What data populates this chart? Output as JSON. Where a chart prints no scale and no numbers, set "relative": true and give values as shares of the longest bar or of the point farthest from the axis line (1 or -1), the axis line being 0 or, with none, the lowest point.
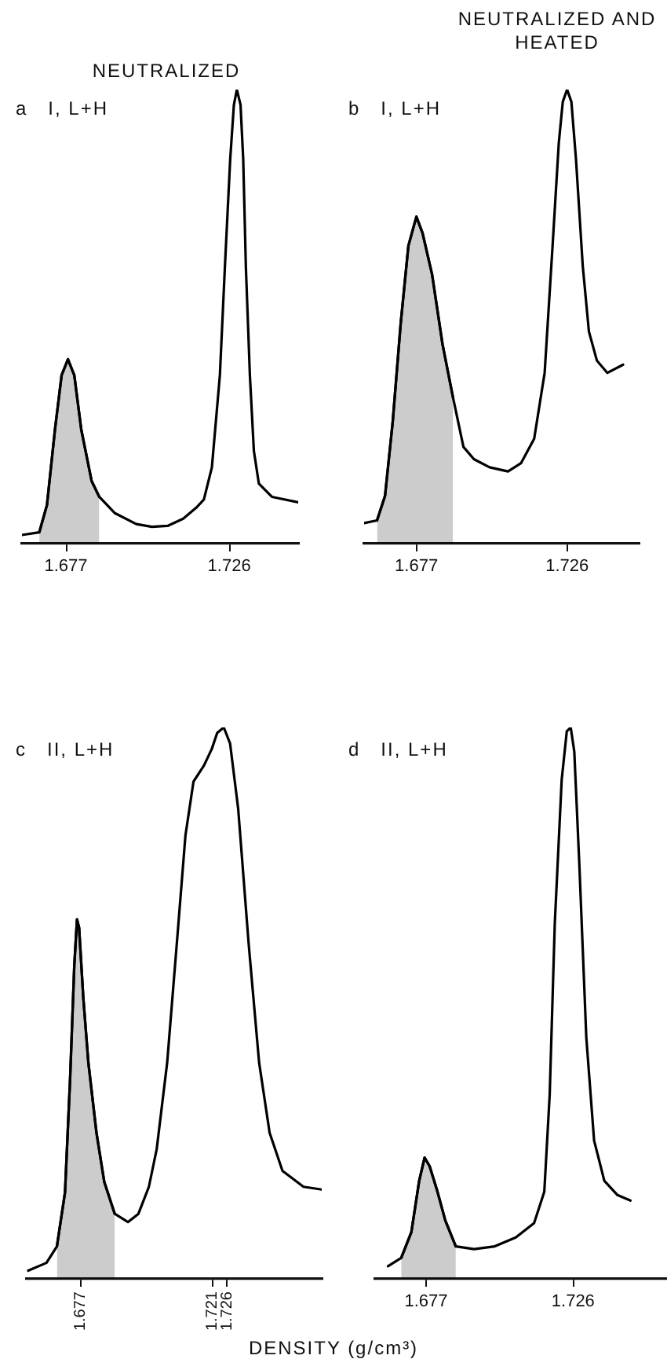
{
  "chart_data": [
    {
      "type": "line",
      "title": "NEUTRALIZED",
      "subtitle": "a   I, L+H",
      "relative": true,
      "xlim": [
        1.6638,
        1.7467
      ],
      "xticks": [
        1.677,
        1.726
      ],
      "series": [
        {
          "color": "#000000",
          "x": [
            1.6638,
            1.669,
            1.6713,
            1.6737,
            1.6757,
            1.6776,
            1.6795,
            1.6816,
            1.6847,
            1.687,
            1.6917,
            1.6981,
            1.7028,
            1.7075,
            1.7122,
            1.7161,
            1.7184,
            1.7208,
            1.7232,
            1.7247,
            1.7263,
            1.7274,
            1.7283,
            1.7294,
            1.7302,
            1.731,
            1.7322,
            1.7334,
            1.7349,
            1.7388,
            1.7467
          ],
          "values": [
            0.019,
            0.025,
            0.085,
            0.251,
            0.371,
            0.406,
            0.371,
            0.251,
            0.138,
            0.103,
            0.067,
            0.043,
            0.037,
            0.039,
            0.055,
            0.079,
            0.097,
            0.168,
            0.371,
            0.609,
            0.847,
            0.966,
            1,
            0.966,
            0.847,
            0.609,
            0.371,
            0.204,
            0.132,
            0.103,
            0.091
          ]
        },
        {
          "type": "area",
          "color": "#000000",
          "x": [
            1.669,
            1.6713,
            1.6737,
            1.6757,
            1.6776,
            1.6795,
            1.6816,
            1.6847,
            1.687
          ],
          "values": [
            0.025,
            0.085,
            0.251,
            0.371,
            0.406,
            0.371,
            0.251,
            0.138,
            0.103
          ]
        }
      ]
    },
    {
      "type": "line",
      "title": "NEUTRALIZED AND HEATED",
      "subtitle": "b   I, L+H",
      "relative": true,
      "xlim": [
        1.66,
        1.7493
      ],
      "xticks": [
        1.677,
        1.726
      ],
      "series": [
        {
          "color": "#000000",
          "x": [
            1.66,
            1.6642,
            1.6668,
            1.6693,
            1.6719,
            1.6744,
            1.677,
            1.679,
            1.6821,
            1.6855,
            1.6889,
            1.6923,
            1.6957,
            1.7008,
            1.7068,
            1.711,
            1.7153,
            1.7187,
            1.7212,
            1.7233,
            1.7246,
            1.726,
            1.7274,
            1.7289,
            1.7311,
            1.7331,
            1.7357,
            1.7391,
            1.7442
          ],
          "values": [
            0.045,
            0.051,
            0.105,
            0.268,
            0.485,
            0.656,
            0.72,
            0.684,
            0.593,
            0.439,
            0.322,
            0.213,
            0.186,
            0.168,
            0.159,
            0.177,
            0.231,
            0.376,
            0.647,
            0.882,
            0.973,
            1,
            0.973,
            0.846,
            0.611,
            0.467,
            0.403,
            0.376,
            0.394
          ]
        },
        {
          "type": "area",
          "color": "#000000",
          "x": [
            1.6642,
            1.6668,
            1.6693,
            1.6719,
            1.6744,
            1.677,
            1.679,
            1.6821,
            1.6855,
            1.6889
          ],
          "values": [
            0.051,
            0.105,
            0.268,
            0.485,
            0.656,
            0.72,
            0.684,
            0.593,
            0.439,
            0.322
          ]
        }
      ]
    },
    {
      "type": "line",
      "subtitle": "c   II, L+H",
      "xlabel": "DENSITY (g/cm³)",
      "relative": true,
      "xlim": [
        1.659,
        1.7575
      ],
      "xticks": [
        1.677,
        1.721,
        1.726
      ],
      "series": [
        {
          "color": "#000000",
          "x": [
            1.6595,
            1.6656,
            1.6691,
            1.6718,
            1.6735,
            1.6749,
            1.6758,
            1.6765,
            1.6779,
            1.6796,
            1.6823,
            1.6849,
            1.6884,
            1.6928,
            1.6963,
            1.6998,
            1.7024,
            1.7059,
            1.7094,
            1.712,
            1.7147,
            1.7182,
            1.7208,
            1.7226,
            1.7248,
            1.7269,
            1.7296,
            1.7331,
            1.7366,
            1.7401,
            1.7444,
            1.7514,
            1.7575
          ],
          "values": [
            0.015,
            0.029,
            0.059,
            0.157,
            0.363,
            0.569,
            0.652,
            0.637,
            0.51,
            0.392,
            0.265,
            0.176,
            0.118,
            0.103,
            0.118,
            0.167,
            0.235,
            0.392,
            0.627,
            0.804,
            0.902,
            0.931,
            0.961,
            0.99,
            1,
            0.971,
            0.853,
            0.608,
            0.392,
            0.265,
            0.196,
            0.167,
            0.162
          ]
        },
        {
          "type": "area",
          "color": "#000000",
          "x": [
            1.6691,
            1.6718,
            1.6735,
            1.6749,
            1.6758,
            1.6765,
            1.6779,
            1.6796,
            1.6823,
            1.6849,
            1.6884
          ],
          "values": [
            0.059,
            0.157,
            0.363,
            0.569,
            0.652,
            0.637,
            0.51,
            0.392,
            0.265,
            0.176,
            0.118
          ]
        }
      ]
    },
    {
      "type": "line",
      "subtitle": "d   II, L+H",
      "relative": true,
      "xlim": [
        1.66,
        1.7573
      ],
      "xticks": [
        1.677,
        1.726
      ],
      "series": [
        {
          "color": "#000000",
          "x": [
            1.6643,
            1.6687,
            1.6721,
            1.6747,
            1.6765,
            1.6782,
            1.6808,
            1.6834,
            1.6869,
            1.693,
            1.6999,
            1.7069,
            1.713,
            1.7164,
            1.7182,
            1.7199,
            1.7222,
            1.7239,
            1.7252,
            1.7264,
            1.7281,
            1.7304,
            1.733,
            1.7364,
            1.7408,
            1.7451
          ],
          "values": [
            0.023,
            0.038,
            0.085,
            0.178,
            0.22,
            0.204,
            0.158,
            0.106,
            0.059,
            0.054,
            0.059,
            0.075,
            0.101,
            0.158,
            0.334,
            0.645,
            0.905,
            0.993,
            1,
            0.956,
            0.749,
            0.438,
            0.251,
            0.178,
            0.152,
            0.142
          ]
        },
        {
          "type": "area",
          "color": "#000000",
          "x": [
            1.6687,
            1.6721,
            1.6747,
            1.6765,
            1.6782,
            1.6808,
            1.6834,
            1.6869
          ],
          "values": [
            0.038,
            0.085,
            0.178,
            0.22,
            0.204,
            0.158,
            0.106,
            0.059
          ]
        }
      ]
    }
  ]
}
